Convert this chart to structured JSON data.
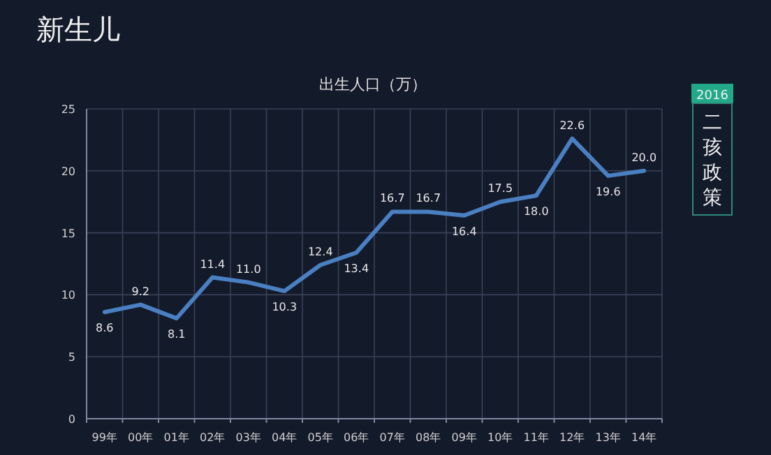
{
  "chart_data": {
    "type": "line",
    "title": "新生儿",
    "subtitle": "出生人口（万）",
    "categories": [
      "99年",
      "00年",
      "01年",
      "02年",
      "03年",
      "04年",
      "05年",
      "06年",
      "07年",
      "08年",
      "09年",
      "10年",
      "11年",
      "12年",
      "13年",
      "14年"
    ],
    "values": [
      8.6,
      9.2,
      8.1,
      11.4,
      11.0,
      10.3,
      12.4,
      13.4,
      16.7,
      16.7,
      16.4,
      17.5,
      18.0,
      22.6,
      19.6,
      20.0
    ],
    "color": "#4a7fc1",
    "ylim": [
      0,
      25
    ],
    "yticks": [
      0,
      5,
      10,
      15,
      20,
      25
    ],
    "value_labels": [
      "8.6",
      "9.2",
      "8.1",
      "11.4",
      "11.0",
      "10.3",
      "12.4",
      "13.4",
      "16.7",
      "16.7",
      "16.4",
      "17.5",
      "18.0",
      "22.6",
      "19.6",
      "20.0"
    ],
    "grid": true,
    "legend": false,
    "marker": "none",
    "line_style": "solid",
    "annotations": [
      "2016",
      "二孩政策"
    ]
  }
}
